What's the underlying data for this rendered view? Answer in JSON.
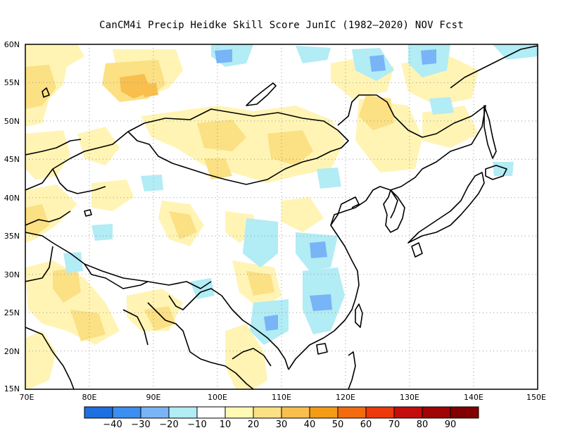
{
  "title": "CanCM4i Precip Heidke Skill Score JunIC (1982–2020) NOV Fcst",
  "lat_labels": [
    "60N",
    "55N",
    "50N",
    "45N",
    "40N",
    "35N",
    "30N",
    "25N",
    "20N",
    "15N"
  ],
  "lon_labels": [
    "70E",
    "80E",
    "90E",
    "100E",
    "110E",
    "120E",
    "130E",
    "140E",
    "150E"
  ],
  "lat_values": [
    60,
    55,
    50,
    45,
    40,
    35,
    30,
    25,
    20,
    15
  ],
  "lon_values": [
    70,
    80,
    90,
    100,
    110,
    120,
    130,
    140,
    150
  ],
  "colorbar": {
    "labels": [
      "−40",
      "−30",
      "−20",
      "−10",
      "10",
      "20",
      "30",
      "40",
      "50",
      "60",
      "70",
      "80",
      "90"
    ],
    "colors": [
      "#1e6fe0",
      "#3c8ef0",
      "#78b4f6",
      "#b2ecf5",
      "#ffffff",
      "#fff9b4",
      "#fbe084",
      "#f8bf4c",
      "#f59c16",
      "#f46b0e",
      "#ec3a0c",
      "#c40e0e",
      "#a00404",
      "#820000"
    ]
  },
  "colors": {
    "light_yellow": "#fff4b4",
    "yellow": "#fbe084",
    "orange": "#f8bf4c",
    "light_cyan": "#b2ecf5",
    "blue": "#78b4f6",
    "mid_blue": "#3c8ef0"
  }
}
